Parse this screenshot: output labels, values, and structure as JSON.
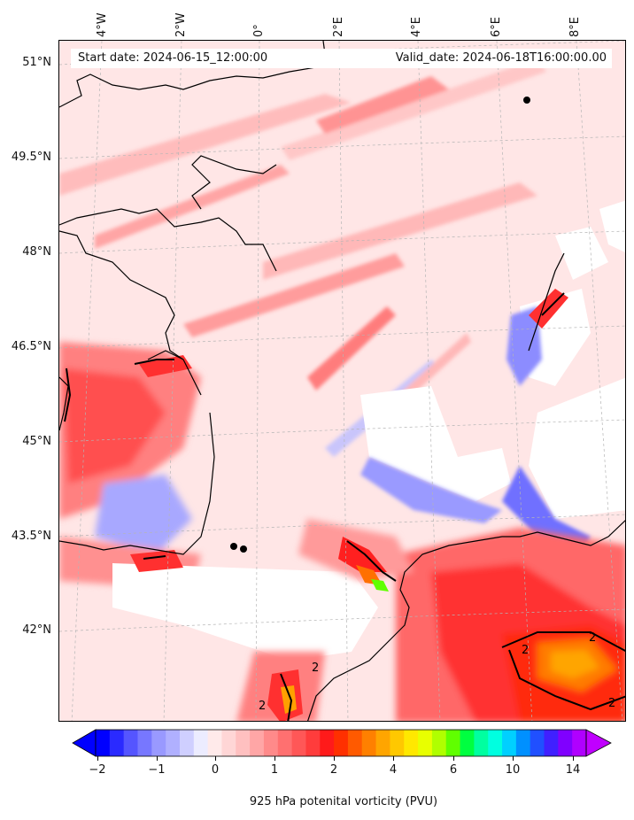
{
  "info": {
    "start_date": "Start date: 2024-06-15_12:00:00",
    "valid_date": "Valid_date: 2024-06-18T16:00:00.00"
  },
  "map": {
    "longitude_labels": [
      "4°W",
      "2°W",
      "0°",
      "2°E",
      "4°E",
      "6°E",
      "8°E"
    ],
    "latitude_labels": [
      "51°N",
      "49.5°N",
      "48°N",
      "46.5°N",
      "45°N",
      "43.5°N",
      "42°N"
    ],
    "contour_label": "2",
    "colors": {
      "coast": "#000000",
      "land_pv_low": "#ffe4e4",
      "pv_mid": "#ff7070",
      "pv_high": "#ff1a1a",
      "negative_pv": "#8080ff",
      "masked": "#ffffff"
    }
  },
  "colorbar": {
    "label": "925 hPa potenital vorticity (PVU)",
    "tick_labels": [
      "-2",
      "−1",
      "0",
      "1",
      "2",
      "4",
      "6",
      "10",
      "14"
    ],
    "tick_labels_display": [
      "−2",
      "−1",
      "0",
      "1",
      "2",
      "4",
      "6",
      "10",
      "14"
    ],
    "colors": [
      "#0000ff",
      "#2a2aff",
      "#5555ff",
      "#7777ff",
      "#9999ff",
      "#b0b0ff",
      "#cfcfff",
      "#ececff",
      "#ffeaea",
      "#ffd6d6",
      "#ffc0c0",
      "#ffa6a6",
      "#ff8a8a",
      "#ff7070",
      "#ff5757",
      "#ff3c3c",
      "#ff1a1a",
      "#ff3000",
      "#ff5a00",
      "#ff8000",
      "#ffa500",
      "#ffc800",
      "#ffe800",
      "#e8ff00",
      "#b0ff00",
      "#60ff00",
      "#00ff40",
      "#00ffa0",
      "#00ffe0",
      "#00d0ff",
      "#0090ff",
      "#2050ff",
      "#4020ff",
      "#8000ff",
      "#b000ff"
    ],
    "under_color": "#0000ff",
    "over_color": "#c000ff"
  }
}
